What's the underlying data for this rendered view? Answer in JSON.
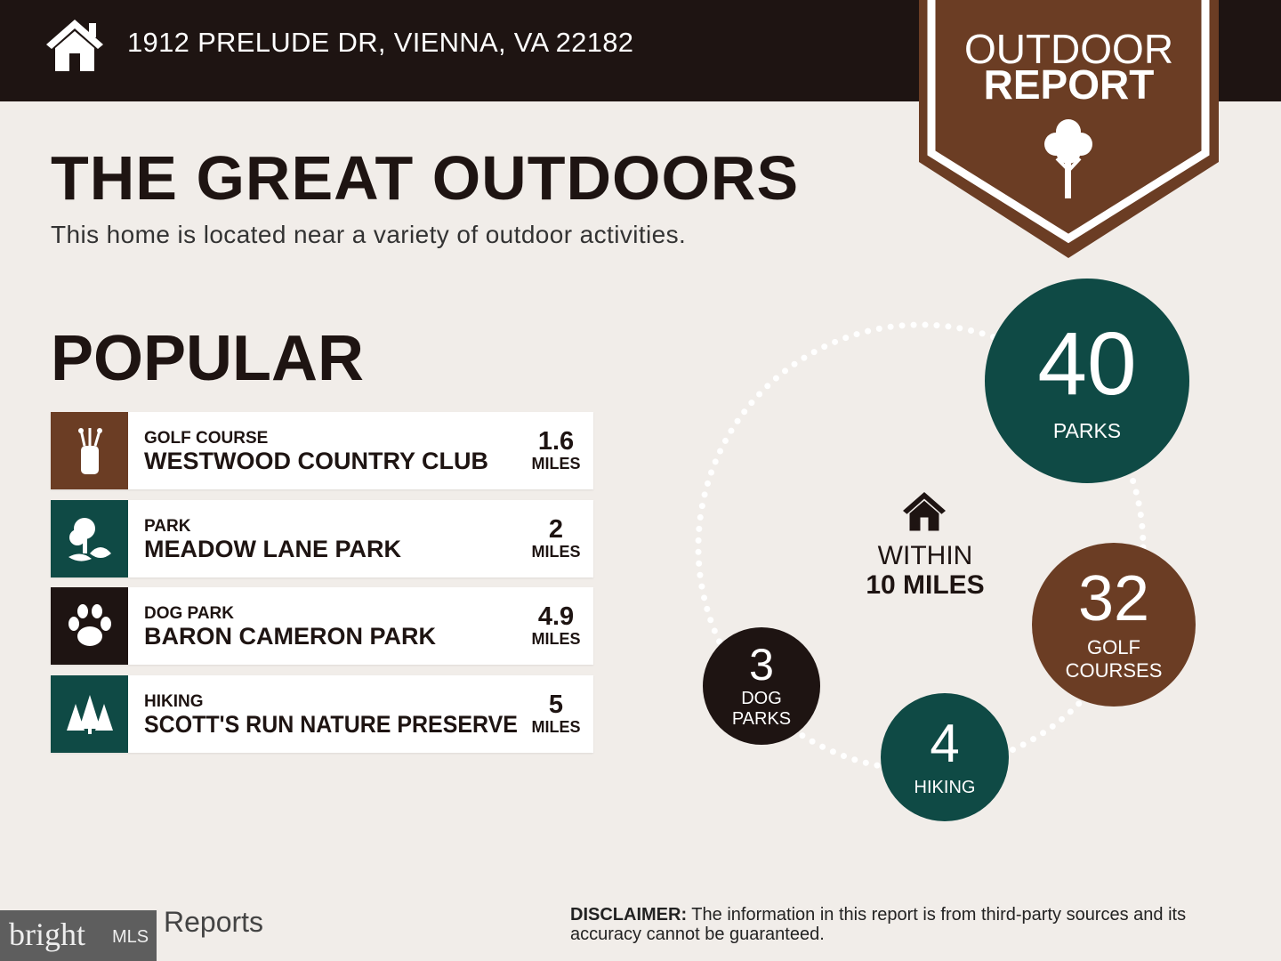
{
  "header": {
    "address": "1912 PRELUDE DR, VIENNA, VA 22182",
    "badge_line1": "OUTDOOR",
    "badge_line2": "REPORT"
  },
  "colors": {
    "dark": "#1e1412",
    "brown": "#6b3d24",
    "teal": "#0f4a45",
    "background": "#f1ede9"
  },
  "title": "THE GREAT OUTDOORS",
  "subtitle": "This home is located near a variety of outdoor activities.",
  "popular": {
    "heading": "POPULAR",
    "items": [
      {
        "category": "GOLF COURSE",
        "name": "WESTWOOD COUNTRY CLUB",
        "distance": "1.6",
        "unit": "MILES",
        "icon": "golf-bag-icon"
      },
      {
        "category": "PARK",
        "name": "MEADOW LANE PARK",
        "distance": "2",
        "unit": "MILES",
        "icon": "park-tree-icon"
      },
      {
        "category": "DOG PARK",
        "name": "BARON CAMERON PARK",
        "distance": "4.9",
        "unit": "MILES",
        "icon": "paw-icon"
      },
      {
        "category": "HIKING",
        "name": "SCOTT'S RUN NATURE PRESERVE",
        "distance": "5",
        "unit": "MILES",
        "icon": "pine-trees-icon"
      }
    ]
  },
  "within": {
    "line1": "WITHIN",
    "line2": "10 MILES"
  },
  "counts": [
    {
      "value": "40",
      "label": "PARKS",
      "label2": ""
    },
    {
      "value": "32",
      "label": "GOLF",
      "label2": "COURSES"
    },
    {
      "value": "4",
      "label": "HIKING",
      "label2": ""
    },
    {
      "value": "3",
      "label": "DOG",
      "label2": "PARKS"
    }
  ],
  "footer": {
    "reports_text": "Reports",
    "bright_logo": "bright MLS",
    "disclaimer_label": "DISCLAIMER:",
    "disclaimer_text": " The information in this report is from third-party sources and its accuracy cannot be guaranteed."
  }
}
